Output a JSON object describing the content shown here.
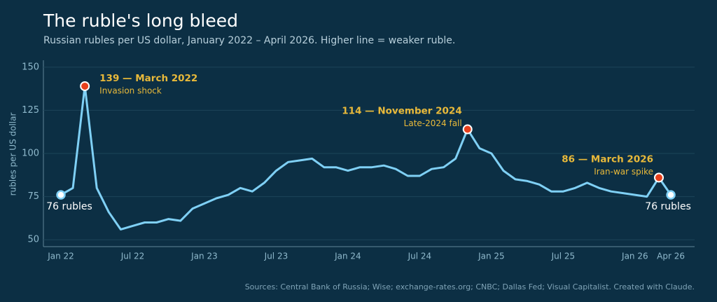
{
  "chart_data": {
    "type": "line",
    "title": "The ruble's long bleed",
    "subtitle": "Russian rubles per US dollar, January 2022 – April 2026. Higher line = weaker ruble.",
    "y_label": "rubles per US dollar",
    "categories": [
      "Jan 22",
      null,
      null,
      null,
      null,
      null,
      "Jul 22",
      null,
      null,
      null,
      null,
      null,
      "Jan 23",
      null,
      null,
      null,
      null,
      null,
      "Jul 23",
      null,
      null,
      null,
      null,
      null,
      "Jan 24",
      null,
      null,
      null,
      null,
      null,
      "Jul 24",
      null,
      null,
      null,
      null,
      null,
      "Jan 25",
      null,
      null,
      null,
      null,
      null,
      "Jul 25",
      null,
      null,
      null,
      null,
      null,
      "Jan 26",
      null,
      null,
      "Apr 26"
    ],
    "values": [
      76,
      80,
      139,
      80,
      66,
      56,
      58,
      60,
      60,
      62,
      61,
      68,
      71,
      74,
      76,
      80,
      78,
      83,
      90,
      95,
      96,
      97,
      92,
      92,
      90,
      92,
      92,
      93,
      91,
      87,
      87,
      91,
      92,
      97,
      114,
      103,
      100,
      90,
      85,
      84,
      82,
      78,
      78,
      80,
      83,
      80,
      78,
      77,
      76,
      75,
      86,
      76
    ],
    "color": "#7fd0f5",
    "highlight_color": "#e8401c",
    "ylim": [
      46,
      154
    ],
    "yticks": [
      50,
      75,
      100,
      125,
      150
    ],
    "grid": true,
    "annotations": [
      {
        "label": "139 — March 2022",
        "note": "Invasion shock"
      },
      {
        "label": "114 — November 2024",
        "note": "Late-2024 fall"
      },
      {
        "label": "86 — March 2026",
        "note": "Iran-war spike"
      }
    ],
    "end_labels": [
      "76 rubles",
      "76 rubles"
    ],
    "source": "Sources: Central Bank of Russia; Wise; exchange-rates.org; CNBC; Dallas Fed; Visual Capitalist. Created with Claude."
  }
}
